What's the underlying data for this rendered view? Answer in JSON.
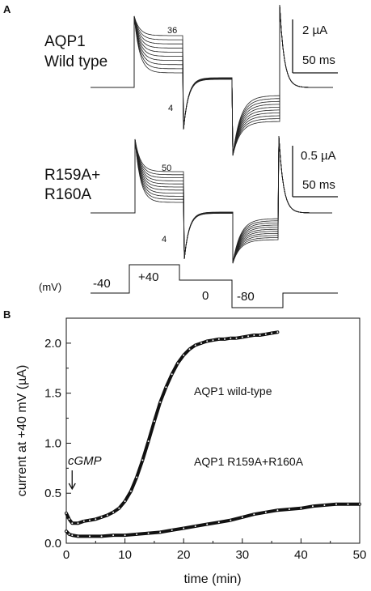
{
  "chart_data": [
    {
      "panel": "A",
      "type": "line",
      "rows": [
        {
          "label_lines": [
            "AQP1",
            "Wild type"
          ],
          "trace_count_top": "36",
          "trace_count_bottom": "4",
          "scalebar_current": "2 µA",
          "scalebar_time": "50 ms"
        },
        {
          "label_lines": [
            "R159A+",
            "R160A"
          ],
          "trace_count_top": "50",
          "trace_count_bottom": "4",
          "scalebar_current": "0.5 µA",
          "scalebar_time": "50 ms"
        }
      ],
      "protocol": {
        "unit_label": "(mV)",
        "steps": [
          "-40",
          "+40",
          "0",
          "-80"
        ]
      }
    },
    {
      "panel": "B",
      "type": "scatter",
      "xlabel": "time (min)",
      "ylabel": "current at +40 mV (µA)",
      "xlim": [
        0,
        50
      ],
      "ylim": [
        0,
        2.25
      ],
      "xticks": [
        "0",
        "10",
        "20",
        "30",
        "40",
        "50"
      ],
      "yticks": [
        "0.0",
        "0.5",
        "1.0",
        "1.5",
        "2.0"
      ],
      "annotation": "cGMP",
      "annotation_x": 1,
      "series": [
        {
          "name": "AQP1 wild-type",
          "x": [
            0,
            0.5,
            1,
            2,
            3,
            4,
            5,
            6,
            7,
            8,
            9,
            10,
            11,
            12,
            13,
            14,
            15,
            16,
            17,
            18,
            19,
            20,
            21,
            22,
            23,
            24,
            25,
            26,
            27,
            28,
            29,
            30,
            31,
            32,
            33,
            34,
            35,
            36
          ],
          "y": [
            0.3,
            0.24,
            0.2,
            0.2,
            0.22,
            0.23,
            0.24,
            0.26,
            0.28,
            0.31,
            0.35,
            0.42,
            0.52,
            0.66,
            0.83,
            1.02,
            1.22,
            1.41,
            1.56,
            1.69,
            1.8,
            1.88,
            1.94,
            1.98,
            2.0,
            2.02,
            2.03,
            2.04,
            2.04,
            2.05,
            2.05,
            2.06,
            2.07,
            2.08,
            2.08,
            2.09,
            2.1,
            2.11
          ]
        },
        {
          "name": "AQP1 R159A+R160A",
          "x": [
            0,
            0.5,
            1,
            2,
            4,
            6,
            8,
            10,
            12,
            14,
            16,
            18,
            20,
            22,
            24,
            26,
            28,
            30,
            32,
            34,
            36,
            38,
            40,
            42,
            44,
            46,
            48,
            50
          ],
          "y": [
            0.12,
            0.09,
            0.08,
            0.07,
            0.07,
            0.07,
            0.08,
            0.08,
            0.09,
            0.1,
            0.11,
            0.13,
            0.15,
            0.17,
            0.19,
            0.21,
            0.23,
            0.26,
            0.29,
            0.31,
            0.33,
            0.34,
            0.35,
            0.37,
            0.38,
            0.39,
            0.39,
            0.39
          ]
        }
      ]
    }
  ]
}
